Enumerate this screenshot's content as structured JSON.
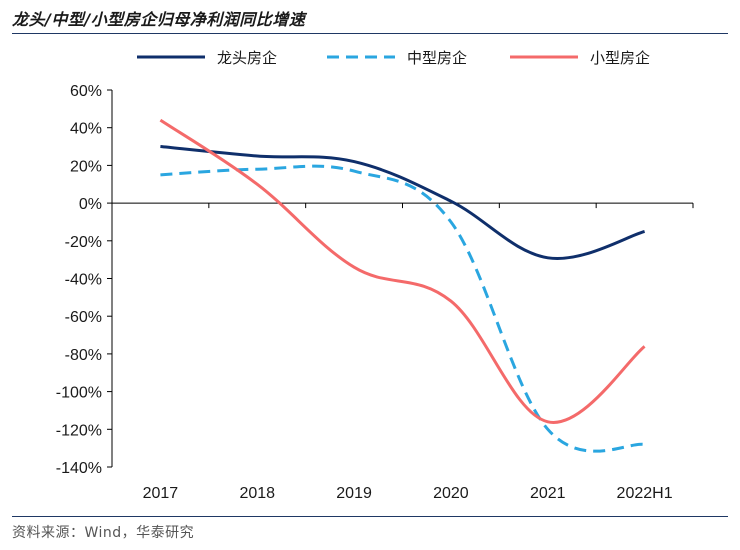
{
  "header": {
    "title": "龙头/中型/小型房企归母净利润同比增速"
  },
  "footer": {
    "source": "资料来源：Wind，华泰研究"
  },
  "chart_data": {
    "type": "line",
    "title": "龙头/中型/小型房企归母净利润同比增速",
    "xlabel": "",
    "ylabel": "",
    "categories": [
      "2017",
      "2018",
      "2019",
      "2020",
      "2021",
      "2022H1"
    ],
    "ylim": [
      -140,
      60
    ],
    "yticks": [
      60,
      40,
      20,
      0,
      -20,
      -40,
      -60,
      -80,
      -100,
      -120,
      -140
    ],
    "ytick_labels": [
      "60%",
      "40%",
      "20%",
      "0%",
      "-20%",
      "-40%",
      "-60%",
      "-80%",
      "-100%",
      "-120%",
      "-140%"
    ],
    "grid": false,
    "legend_position": "top",
    "series": [
      {
        "name": "龙头房企",
        "values": [
          30,
          25,
          22,
          1,
          -29,
          -15
        ],
        "color": "#0f2f6b",
        "style": "solid"
      },
      {
        "name": "中型房企",
        "values": [
          15,
          18,
          17,
          -10,
          -120,
          -128
        ],
        "color": "#2aa6e0",
        "style": "dashed"
      },
      {
        "name": "小型房企",
        "values": [
          44,
          10,
          -34,
          -52,
          -116,
          -76
        ],
        "color": "#f46a6a",
        "style": "solid"
      }
    ]
  }
}
